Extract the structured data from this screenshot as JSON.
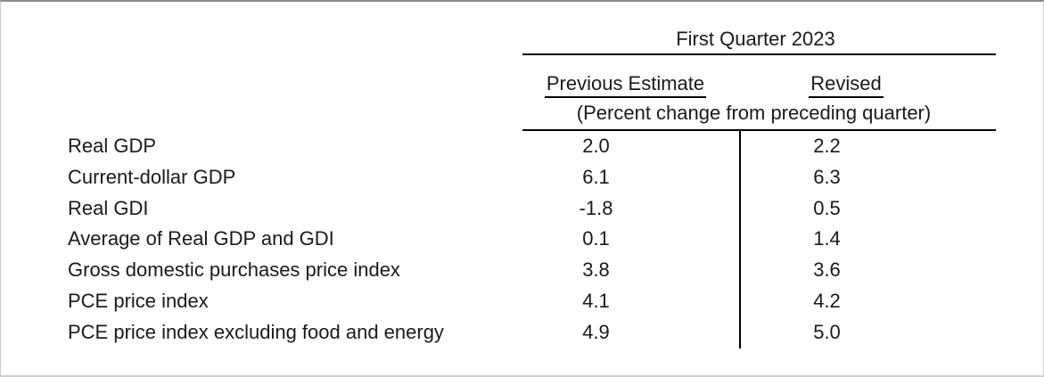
{
  "table": {
    "spanner": "First Quarter 2023",
    "columns": {
      "previous": "Previous Estimate",
      "revised": "Revised"
    },
    "subtitle": "(Percent change from preceding quarter)",
    "rows": [
      {
        "label": "Real GDP",
        "previous": "2.0",
        "revised": "2.2"
      },
      {
        "label": "Current-dollar GDP",
        "previous": "6.1",
        "revised": "6.3"
      },
      {
        "label": "Real GDI",
        "previous": "-1.8",
        "revised": "0.5"
      },
      {
        "label": "Average of Real GDP and GDI",
        "previous": "0.1",
        "revised": "1.4"
      },
      {
        "label": "Gross domestic purchases price index",
        "previous": "3.8",
        "revised": "3.6"
      },
      {
        "label": "PCE price index",
        "previous": "4.1",
        "revised": "4.2"
      },
      {
        "label": "PCE price index excluding food and energy",
        "previous": "4.9",
        "revised": "5.0"
      }
    ],
    "colors": {
      "text": "#1a1a1a",
      "rule": "#000000",
      "frame_top": "#8c8c8c",
      "frame_side": "#c9c9c9"
    }
  }
}
